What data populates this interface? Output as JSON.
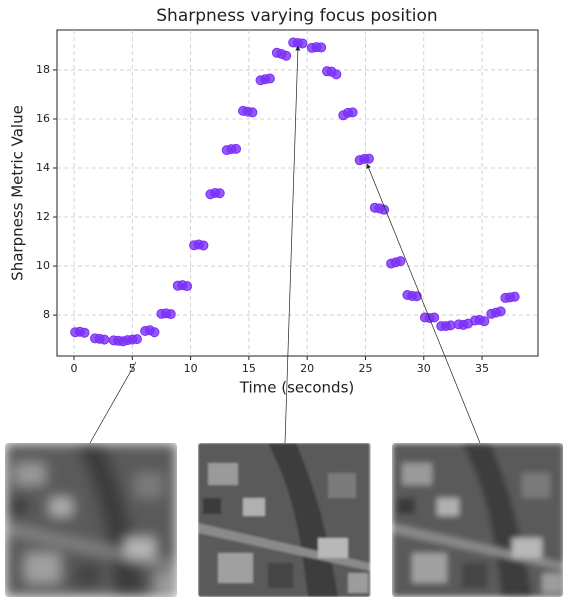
{
  "chart_data": {
    "type": "scatter",
    "title": "Sharpness varying focus position",
    "x_label": "Time (seconds)",
    "y_label": "Sharpness Metric Value",
    "x": [
      0.1,
      0.5,
      0.9,
      1.8,
      2.2,
      2.6,
      3.4,
      3.8,
      4.2,
      4.6,
      5.0,
      5.4,
      6.1,
      6.5,
      6.9,
      7.5,
      7.9,
      8.3,
      8.9,
      9.3,
      9.7,
      10.3,
      10.7,
      11.1,
      11.7,
      12.1,
      12.5,
      13.1,
      13.5,
      13.9,
      14.5,
      14.9,
      15.3,
      16.0,
      16.4,
      16.8,
      17.4,
      17.8,
      18.2,
      18.8,
      19.2,
      19.6,
      20.4,
      20.8,
      21.2,
      21.7,
      22.1,
      22.5,
      23.1,
      23.5,
      23.9,
      24.5,
      24.9,
      25.3,
      25.8,
      26.2,
      26.6,
      27.2,
      27.6,
      28.0,
      28.6,
      29.0,
      29.4,
      30.1,
      30.5,
      30.9,
      31.5,
      31.9,
      32.3,
      33.0,
      33.4,
      33.8,
      34.4,
      34.8,
      35.2,
      35.8,
      36.2,
      36.6,
      37.0,
      37.4,
      37.8
    ],
    "values": [
      7.3,
      7.32,
      7.28,
      7.05,
      7.03,
      7.0,
      6.97,
      6.95,
      6.93,
      6.98,
      7.0,
      7.02,
      7.35,
      7.38,
      7.3,
      8.05,
      8.07,
      8.04,
      9.2,
      9.22,
      9.18,
      10.85,
      10.88,
      10.84,
      12.93,
      12.98,
      12.97,
      14.73,
      14.77,
      14.78,
      16.33,
      16.3,
      16.27,
      17.58,
      17.62,
      17.65,
      18.7,
      18.65,
      18.58,
      19.12,
      19.1,
      19.08,
      18.9,
      18.93,
      18.92,
      17.95,
      17.93,
      17.82,
      16.15,
      16.25,
      16.27,
      14.32,
      14.37,
      14.38,
      12.38,
      12.35,
      12.3,
      10.1,
      10.15,
      10.2,
      8.82,
      8.78,
      8.77,
      7.9,
      7.88,
      7.9,
      7.55,
      7.55,
      7.58,
      7.62,
      7.6,
      7.65,
      7.78,
      7.8,
      7.75,
      8.05,
      8.1,
      8.15,
      8.7,
      8.72,
      8.75
    ],
    "color": "#7b2ff7",
    "xlim": [
      -1.46,
      39.8
    ],
    "ylim": [
      6.33,
      19.63
    ],
    "xticks": [
      0,
      5,
      10,
      15,
      20,
      25,
      30,
      35
    ],
    "yticks": [
      8,
      10,
      12,
      14,
      16,
      18
    ],
    "grid": true
  }
}
